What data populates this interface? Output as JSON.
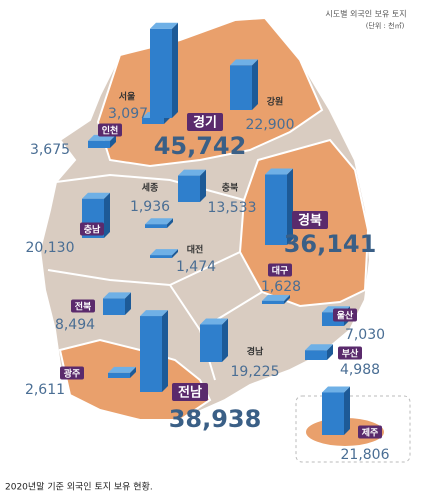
{
  "chart_data": {
    "type": "bar",
    "title": "시도별 외국인 보유 토지",
    "subtitle": "(단위 : 천㎡)",
    "categories": [
      "서울",
      "인천",
      "경기",
      "강원",
      "세종",
      "충북",
      "충남",
      "대전",
      "경북",
      "대구",
      "전북",
      "울산",
      "경남",
      "부산",
      "광주",
      "전남",
      "제주"
    ],
    "values": [
      3097,
      3675,
      45742,
      22900,
      1936,
      13533,
      20130,
      1474,
      36141,
      1628,
      8494,
      7030,
      19225,
      4988,
      2611,
      38938,
      21806
    ],
    "value_labels": [
      "3,097",
      "3,675",
      "45,742",
      "22,900",
      "1,936",
      "13,533",
      "20,130",
      "1,474",
      "36,141",
      "1,628",
      "8,494",
      "7,030",
      "19,225",
      "4,988",
      "2,611",
      "38,938",
      "21,806"
    ],
    "color": "#2f7fcc"
  },
  "caption": "2020년말 기준 외국인 토지 보유 현황."
}
